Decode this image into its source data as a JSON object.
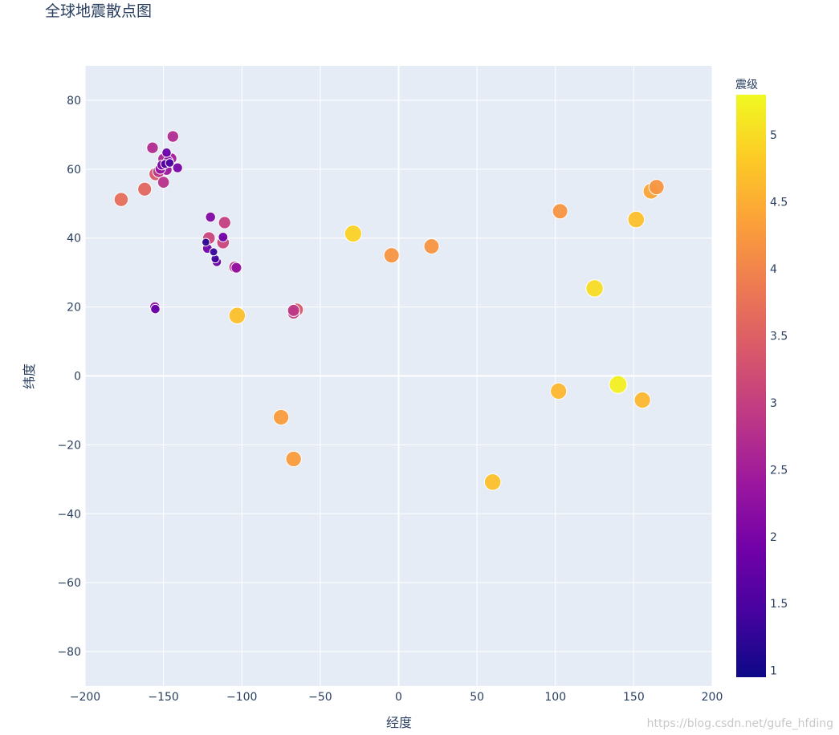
{
  "chart_data": {
    "type": "scatter",
    "title": "全球地震散点图",
    "xlabel": "经度",
    "ylabel": "纬度",
    "xlim": [
      -200,
      200
    ],
    "ylim": [
      -90,
      90
    ],
    "xticks": [
      -200,
      -150,
      -100,
      -50,
      0,
      50,
      100,
      150,
      200
    ],
    "xtick_labels": [
      "−200",
      "−150",
      "−100",
      "−50",
      "0",
      "50",
      "100",
      "150",
      "200"
    ],
    "yticks": [
      -80,
      -60,
      -40,
      -20,
      0,
      20,
      40,
      60,
      80
    ],
    "ytick_labels": [
      "−80",
      "−60",
      "−40",
      "−20",
      "0",
      "20",
      "40",
      "60",
      "80"
    ],
    "grid": true,
    "colorbar": {
      "title": "震级",
      "range": [
        0.95,
        5.3
      ],
      "ticks": [
        1,
        1.5,
        2,
        2.5,
        3,
        3.5,
        4,
        4.5,
        5
      ],
      "tick_labels": [
        "1",
        "1.5",
        "2",
        "2.5",
        "3",
        "3.5",
        "4",
        "4.5",
        "5"
      ],
      "colorscale": [
        "#0d0887",
        "#46039f",
        "#7201a8",
        "#9c179e",
        "#bd3786",
        "#d8576b",
        "#ed7953",
        "#fb9f3a",
        "#fdca26",
        "#f0f921"
      ]
    },
    "points": [
      {
        "lon": -177,
        "lat": 51.2,
        "mag": 3.7
      },
      {
        "lon": -162,
        "lat": 54.2,
        "mag": 3.6
      },
      {
        "lon": -157,
        "lat": 66.2,
        "mag": 2.7
      },
      {
        "lon": -155,
        "lat": 58.6,
        "mag": 3.4
      },
      {
        "lon": -153,
        "lat": 59.3,
        "mag": 2.9
      },
      {
        "lon": -152,
        "lat": 60.1,
        "mag": 2.3
      },
      {
        "lon": -151,
        "lat": 61.2,
        "mag": 2.0
      },
      {
        "lon": -150,
        "lat": 63.0,
        "mag": 2.6
      },
      {
        "lon": -149,
        "lat": 61.5,
        "mag": 1.6
      },
      {
        "lon": -148,
        "lat": 64.8,
        "mag": 1.8
      },
      {
        "lon": -150,
        "lat": 56.2,
        "mag": 2.8
      },
      {
        "lon": -148,
        "lat": 59.8,
        "mag": 2.4
      },
      {
        "lon": -147,
        "lat": 62.3,
        "mag": 2.2
      },
      {
        "lon": -146,
        "lat": 61.8,
        "mag": 1.5
      },
      {
        "lon": -145,
        "lat": 63.1,
        "mag": 2.5
      },
      {
        "lon": -144,
        "lat": 69.5,
        "mag": 2.7
      },
      {
        "lon": -141,
        "lat": 60.4,
        "mag": 2.0
      },
      {
        "lon": -155.5,
        "lat": 20.0,
        "mag": 2.2
      },
      {
        "lon": -155.2,
        "lat": 19.4,
        "mag": 1.8
      },
      {
        "lon": -120,
        "lat": 46.1,
        "mag": 2.1
      },
      {
        "lon": -111,
        "lat": 44.5,
        "mag": 3.0
      },
      {
        "lon": -112,
        "lat": 40.3,
        "mag": 1.9
      },
      {
        "lon": -121,
        "lat": 40.0,
        "mag": 3.1
      },
      {
        "lon": -123,
        "lat": 38.8,
        "mag": 1.2
      },
      {
        "lon": -112,
        "lat": 38.7,
        "mag": 3.1
      },
      {
        "lon": -122,
        "lat": 37.0,
        "mag": 1.9
      },
      {
        "lon": -118,
        "lat": 36.0,
        "mag": 1.3
      },
      {
        "lon": -117,
        "lat": 34.0,
        "mag": 1.4
      },
      {
        "lon": -116,
        "lat": 33.1,
        "mag": 1.8
      },
      {
        "lon": -104.5,
        "lat": 31.6,
        "mag": 2.8
      },
      {
        "lon": -103.5,
        "lat": 31.4,
        "mag": 2.3
      },
      {
        "lon": -103,
        "lat": 17.5,
        "mag": 4.7
      },
      {
        "lon": -67,
        "lat": 18.3,
        "mag": 3.0
      },
      {
        "lon": -65,
        "lat": 19.2,
        "mag": 3.4
      },
      {
        "lon": -67,
        "lat": 19.0,
        "mag": 2.9
      },
      {
        "lon": -75,
        "lat": -12.0,
        "mag": 4.3
      },
      {
        "lon": -67,
        "lat": -24.1,
        "mag": 4.3
      },
      {
        "lon": -29,
        "lat": 41.3,
        "mag": 4.9
      },
      {
        "lon": -4.5,
        "lat": 35.0,
        "mag": 4.2
      },
      {
        "lon": 21,
        "lat": 37.6,
        "mag": 4.2
      },
      {
        "lon": 60,
        "lat": -30.8,
        "mag": 4.7
      },
      {
        "lon": 103,
        "lat": 47.8,
        "mag": 4.2
      },
      {
        "lon": 102,
        "lat": -4.4,
        "mag": 4.6
      },
      {
        "lon": 125,
        "lat": 25.4,
        "mag": 5.0
      },
      {
        "lon": 140,
        "lat": -2.5,
        "mag": 5.2
      },
      {
        "lon": 151.5,
        "lat": 45.4,
        "mag": 4.7
      },
      {
        "lon": 155.5,
        "lat": -7.0,
        "mag": 4.6
      },
      {
        "lon": 161,
        "lat": 53.6,
        "mag": 4.4
      },
      {
        "lon": 164.5,
        "lat": 54.8,
        "mag": 4.2
      }
    ]
  },
  "watermark": "https://blog.csdn.net/gufe_hfding"
}
